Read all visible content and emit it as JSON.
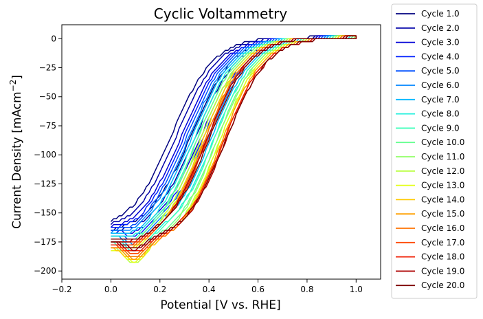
{
  "chart_data": {
    "type": "line",
    "title": "Cyclic Voltammetry",
    "xlabel": "Potential [V vs. RHE]",
    "ylabel_main": "Current Density [mAcm",
    "ylabel_sup": "−2",
    "ylabel_close": "]",
    "xlim": [
      -0.2,
      1.1
    ],
    "ylim": [
      -207,
      12
    ],
    "x_ticks": [
      {
        "value": -0.2,
        "label": "−0.2"
      },
      {
        "value": 0.0,
        "label": "0.0"
      },
      {
        "value": 0.2,
        "label": "0.2"
      },
      {
        "value": 0.4,
        "label": "0.4"
      },
      {
        "value": 0.6,
        "label": "0.6"
      },
      {
        "value": 0.8,
        "label": "0.8"
      },
      {
        "value": 1.0,
        "label": "1.0"
      }
    ],
    "y_ticks": [
      {
        "value": 0,
        "label": "0"
      },
      {
        "value": -25,
        "label": "−25"
      },
      {
        "value": -50,
        "label": "−50"
      },
      {
        "value": -75,
        "label": "−75"
      },
      {
        "value": -100,
        "label": "−100"
      },
      {
        "value": -125,
        "label": "−125"
      },
      {
        "value": -150,
        "label": "−150"
      },
      {
        "value": -175,
        "label": "−175"
      },
      {
        "value": -200,
        "label": "−200"
      }
    ],
    "grid": false,
    "legend_position": "outside-right",
    "potential_sweep": {
      "start": 0.0,
      "end": 1.0
    },
    "series": [
      {
        "name": "Cycle 1.0",
        "color": "#00007f",
        "cathodic_limit": -165,
        "trough": -167,
        "half_wave_fwd": 0.33,
        "half_wave_rev": 0.25
      },
      {
        "name": "Cycle 2.0",
        "color": "#0000a8",
        "cathodic_limit": -166,
        "trough": -170,
        "half_wave_fwd": 0.35,
        "half_wave_rev": 0.27
      },
      {
        "name": "Cycle 3.0",
        "color": "#0000d6",
        "cathodic_limit": -167,
        "trough": -173,
        "half_wave_fwd": 0.37,
        "half_wave_rev": 0.29
      },
      {
        "name": "Cycle 4.0",
        "color": "#0020ff",
        "cathodic_limit": -168,
        "trough": -175,
        "half_wave_fwd": 0.38,
        "half_wave_rev": 0.3
      },
      {
        "name": "Cycle 5.0",
        "color": "#0050ff",
        "cathodic_limit": -169,
        "trough": -178,
        "half_wave_fwd": 0.39,
        "half_wave_rev": 0.31
      },
      {
        "name": "Cycle 6.0",
        "color": "#0084ff",
        "cathodic_limit": -170,
        "trough": -181,
        "half_wave_fwd": 0.4,
        "half_wave_rev": 0.32
      },
      {
        "name": "Cycle 7.0",
        "color": "#00b8ff",
        "cathodic_limit": -172,
        "trough": -183,
        "half_wave_fwd": 0.41,
        "half_wave_rev": 0.33
      },
      {
        "name": "Cycle 8.0",
        "color": "#1cf0dc",
        "cathodic_limit": -174,
        "trough": -186,
        "half_wave_fwd": 0.42,
        "half_wave_rev": 0.34
      },
      {
        "name": "Cycle 9.0",
        "color": "#3effb9",
        "cathodic_limit": -176,
        "trough": -189,
        "half_wave_fwd": 0.42,
        "half_wave_rev": 0.35
      },
      {
        "name": "Cycle 10.0",
        "color": "#66ff90",
        "cathodic_limit": -178,
        "trough": -192,
        "half_wave_fwd": 0.43,
        "half_wave_rev": 0.35
      },
      {
        "name": "Cycle 11.0",
        "color": "#90ff66",
        "cathodic_limit": -180,
        "trough": -194,
        "half_wave_fwd": 0.43,
        "half_wave_rev": 0.36
      },
      {
        "name": "Cycle 12.0",
        "color": "#b9ff3e",
        "cathodic_limit": -181,
        "trough": -196,
        "half_wave_fwd": 0.44,
        "half_wave_rev": 0.36
      },
      {
        "name": "Cycle 13.0",
        "color": "#e3ff13",
        "cathodic_limit": -182,
        "trough": -195,
        "half_wave_fwd": 0.44,
        "half_wave_rev": 0.37
      },
      {
        "name": "Cycle 14.0",
        "color": "#ffc900",
        "cathodic_limit": -181,
        "trough": -194,
        "half_wave_fwd": 0.45,
        "half_wave_rev": 0.37
      },
      {
        "name": "Cycle 15.0",
        "color": "#ffa000",
        "cathodic_limit": -180,
        "trough": -192,
        "half_wave_fwd": 0.45,
        "half_wave_rev": 0.38
      },
      {
        "name": "Cycle 16.0",
        "color": "#ff7300",
        "cathodic_limit": -179,
        "trough": -190,
        "half_wave_fwd": 0.46,
        "half_wave_rev": 0.38
      },
      {
        "name": "Cycle 17.0",
        "color": "#ff4a00",
        "cathodic_limit": -178,
        "trough": -188,
        "half_wave_fwd": 0.46,
        "half_wave_rev": 0.39
      },
      {
        "name": "Cycle 18.0",
        "color": "#f01c00",
        "cathodic_limit": -177,
        "trough": -186,
        "half_wave_fwd": 0.46,
        "half_wave_rev": 0.39
      },
      {
        "name": "Cycle 19.0",
        "color": "#ad0000",
        "cathodic_limit": -176,
        "trough": -184,
        "half_wave_fwd": 0.47,
        "half_wave_rev": 0.39
      },
      {
        "name": "Cycle 20.0",
        "color": "#7f0000",
        "cathodic_limit": -175,
        "trough": -182,
        "half_wave_fwd": 0.47,
        "half_wave_rev": 0.4
      }
    ]
  }
}
